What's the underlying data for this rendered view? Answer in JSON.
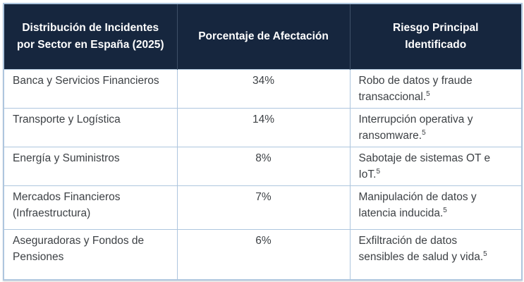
{
  "colors": {
    "header_bg": "#16263E",
    "header_text": "#FFFFFF",
    "body_text": "#3D4145",
    "cell_border": "#AEC6DE",
    "header_divider": "#3E5068",
    "background": "#FFFFFF"
  },
  "table": {
    "headers": {
      "sector": "Distribución de Incidentes por Sector en España (2025)",
      "percentage": "Porcentaje de Afectación",
      "risk": "Riesgo Principal Identificado"
    },
    "rows": [
      {
        "sector": "Banca y Servicios Financieros",
        "percentage": "34%",
        "risk": "Robo de datos y fraude transaccional.",
        "footnote_ref": "5"
      },
      {
        "sector": "Transporte y Logística",
        "percentage": "14%",
        "risk": "Interrupción operativa y ransomware.",
        "footnote_ref": "5"
      },
      {
        "sector": "Energía y Suministros",
        "percentage": "8%",
        "risk": "Sabotaje de sistemas OT e IoT.",
        "footnote_ref": "5"
      },
      {
        "sector": "Mercados Financieros (Infraestructura)",
        "percentage": "7%",
        "risk": "Manipulación de datos y latencia inducida.",
        "footnote_ref": "5"
      },
      {
        "sector": "Aseguradoras y Fondos de Pensiones",
        "percentage": "6%",
        "risk": "Exfiltración de datos sensibles de salud y vida.",
        "footnote_ref": "5"
      }
    ]
  },
  "chart_data": {
    "type": "table",
    "title": "Distribución de Incidentes por Sector en España (2025)",
    "categories": [
      "Banca y Servicios Financieros",
      "Transporte y Logística",
      "Energía y Suministros",
      "Mercados Financieros (Infraestructura)",
      "Aseguradoras y Fondos de Pensiones"
    ],
    "values": [
      34,
      14,
      8,
      7,
      6
    ],
    "value_unit": "%",
    "value_label": "Porcentaje de Afectación",
    "risks": [
      "Robo de datos y fraude transaccional.",
      "Interrupción operativa y ransomware.",
      "Sabotaje de sistemas OT e IoT.",
      "Manipulación de datos y latencia inducida.",
      "Exfiltración de datos sensibles de salud y vida."
    ]
  }
}
